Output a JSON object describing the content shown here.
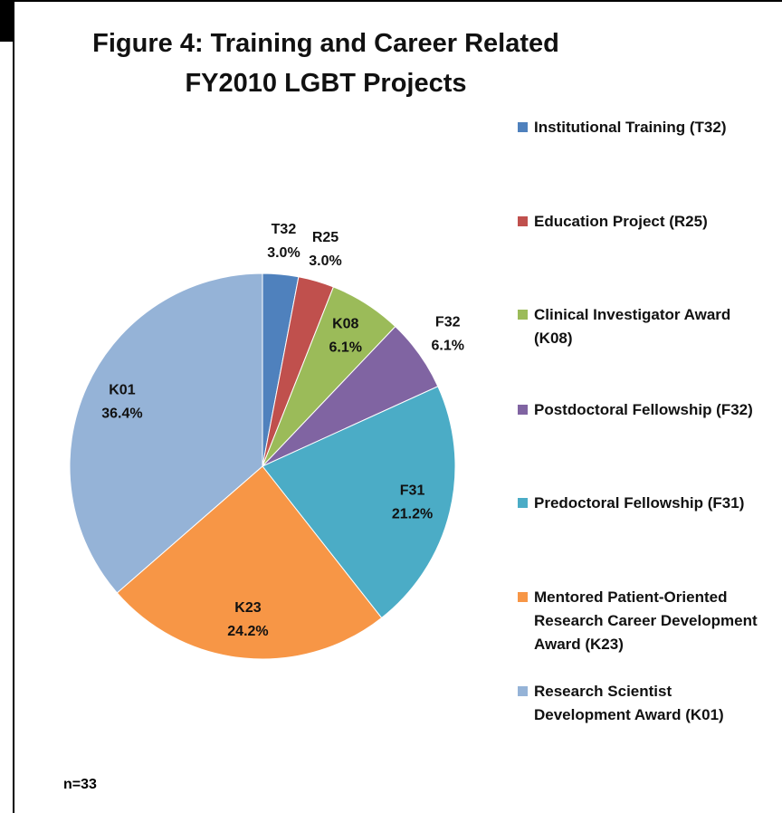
{
  "chart_data": {
    "type": "pie",
    "title": [
      "Figure 4: Training and Career Related",
      "FY2010 LGBT Projects"
    ],
    "categories": [
      "Institutional Training (T32)",
      "Education Project (R25)",
      "Clinical Investigator Award (K08)",
      "Postdoctoral Fellowship (F32)",
      "Predoctoral Fellowship (F31)",
      "Mentored Patient-Oriented Research Career Development Award (K23)",
      "Research Scientist Development Award (K01)"
    ],
    "slice_labels": [
      "T32",
      "R25",
      "K08",
      "F32",
      "F31",
      "K23",
      "K01"
    ],
    "values": [
      3.0,
      3.0,
      6.1,
      6.1,
      21.2,
      24.2,
      36.4
    ],
    "value_labels": [
      "3.0%",
      "3.0%",
      "6.1%",
      "6.1%",
      "21.2%",
      "24.2%",
      "36.4%"
    ],
    "colors": [
      "#4f81bd",
      "#c0504d",
      "#9bbb59",
      "#8064a2",
      "#4bacc6",
      "#f79646",
      "#95b3d7"
    ],
    "legend": "right",
    "annotation": "n=33"
  }
}
